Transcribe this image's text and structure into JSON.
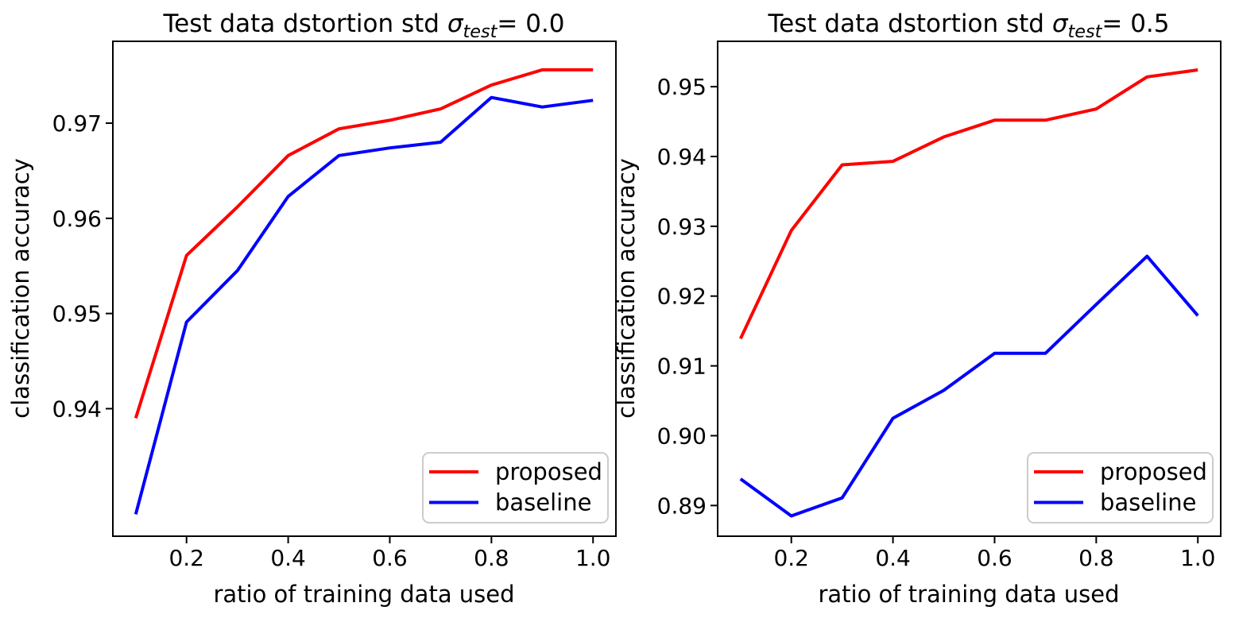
{
  "figure": {
    "background": "#ffffff",
    "charts": [
      {
        "title_prefix": "Test data dstortion std ",
        "title_sigma": "σ",
        "title_sigma_sub": "test",
        "title_suffix": "= 0.0",
        "xlabel": "ratio of training data used",
        "ylabel": "classification accuracy"
      },
      {
        "title_prefix": "Test data dstortion std ",
        "title_sigma": "σ",
        "title_sigma_sub": "test",
        "title_suffix": "= 0.5",
        "xlabel": "ratio of training data used",
        "ylabel": "classification accuracy"
      }
    ],
    "colors": {
      "proposed": "#ff0000",
      "baseline": "#0000ff",
      "legend_border": "#cccccc",
      "axes": "#000000"
    }
  },
  "chart_data": [
    {
      "type": "line",
      "title": "Test data dstortion std σ_test= 0.0",
      "xlabel": "ratio of training data used",
      "ylabel": "classification accuracy",
      "x": [
        0.1,
        0.2,
        0.3,
        0.4,
        0.5,
        0.6,
        0.7,
        0.8,
        0.9,
        1.0
      ],
      "series": [
        {
          "name": "proposed",
          "color": "#ff0000",
          "values": [
            0.939,
            0.9561,
            0.9612,
            0.9666,
            0.9694,
            0.9703,
            0.9715,
            0.974,
            0.9756,
            0.9756
          ]
        },
        {
          "name": "baseline",
          "color": "#0000ff",
          "values": [
            0.9289,
            0.9491,
            0.9545,
            0.9623,
            0.9666,
            0.9674,
            0.968,
            0.9727,
            0.9717,
            0.9724
          ]
        }
      ],
      "xticks": [
        "0.2",
        "0.4",
        "0.6",
        "0.8",
        "1.0"
      ],
      "yticks": [
        "0.94",
        "0.95",
        "0.96",
        "0.97"
      ],
      "xlim": [
        0.055,
        1.045
      ],
      "ylim": [
        0.9266,
        0.9786
      ],
      "grid": false,
      "legend_position": "lower right",
      "legend": [
        "proposed",
        "baseline"
      ]
    },
    {
      "type": "line",
      "title": "Test data dstortion std σ_test= 0.5",
      "xlabel": "ratio of training data used",
      "ylabel": "classification accuracy",
      "x": [
        0.1,
        0.2,
        0.3,
        0.4,
        0.5,
        0.6,
        0.7,
        0.8,
        0.9,
        1.0
      ],
      "series": [
        {
          "name": "proposed",
          "color": "#ff0000",
          "values": [
            0.9139,
            0.9294,
            0.9388,
            0.9393,
            0.9428,
            0.9452,
            0.9452,
            0.9468,
            0.9514,
            0.9524
          ]
        },
        {
          "name": "baseline",
          "color": "#0000ff",
          "values": [
            0.8938,
            0.8885,
            0.8911,
            0.9025,
            0.9065,
            0.9118,
            0.9118,
            0.9188,
            0.9257,
            0.9172
          ]
        }
      ],
      "xticks": [
        "0.2",
        "0.4",
        "0.6",
        "0.8",
        "1.0"
      ],
      "yticks": [
        "0.89",
        "0.90",
        "0.91",
        "0.92",
        "0.93",
        "0.94",
        "0.95"
      ],
      "xlim": [
        0.055,
        1.045
      ],
      "ylim": [
        0.8856,
        0.9565
      ],
      "grid": false,
      "legend_position": "lower right",
      "legend": [
        "proposed",
        "baseline"
      ]
    }
  ]
}
